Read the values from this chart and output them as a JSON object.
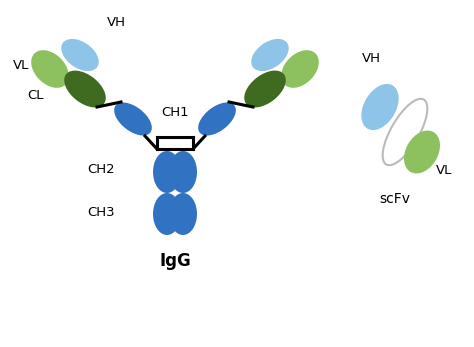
{
  "blue": "#3272C3",
  "lblue": "#8EC4E8",
  "dgreen": "#3E6B1F",
  "lgreen": "#8DC160",
  "linker_color": "#BBBBBB",
  "bg_color": "#FFFFFF",
  "text_color": "#000000",
  "igg_label": "IgG",
  "scfv_label": "scFv",
  "vh_label": "VH",
  "vl_label": "VL",
  "cl_label": "CL",
  "ch1_label": "CH1",
  "ch2_label": "CH2",
  "ch3_label": "CH3"
}
